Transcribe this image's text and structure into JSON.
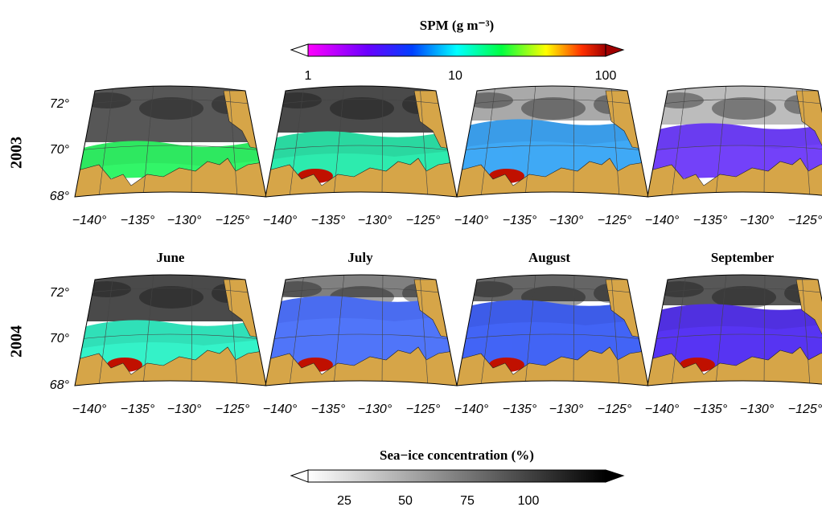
{
  "spm_colorbar": {
    "title": "SPM (g m⁻³)",
    "ticks": [
      "1",
      "10",
      "100"
    ]
  },
  "ice_colorbar": {
    "title": "Sea−ice concentration (%)",
    "ticks": [
      "25",
      "50",
      "75",
      "100"
    ]
  },
  "rows": [
    "2003",
    "2004"
  ],
  "months": [
    "June",
    "July",
    "August",
    "September"
  ],
  "lat_labels": [
    "72°",
    "70°",
    "68°"
  ],
  "lon_labels": [
    "−140°",
    "−135°",
    "−130°",
    "−125°"
  ]
}
